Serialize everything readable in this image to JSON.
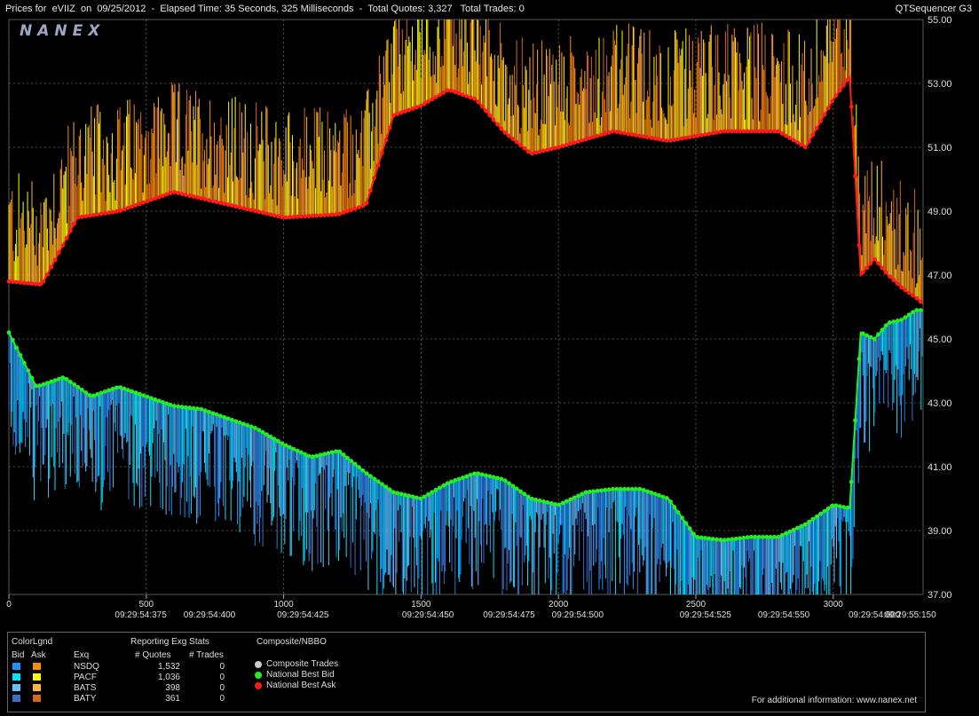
{
  "header": {
    "title": "Prices for  eVIIZ  on  09/25/2012  -  Elapsed Time: 35 Seconds, 325 Milliseconds  -  Total Quotes: 3,327   Total Trades: 0",
    "app": "QTSequencer G3",
    "logo": "NANEX"
  },
  "chart_data": {
    "type": "line",
    "y_ticks": [
      "55.00",
      "53.00",
      "51.00",
      "49.00",
      "47.00",
      "45.00",
      "43.00",
      "41.00",
      "39.00",
      "37.00"
    ],
    "ylim": [
      37,
      55
    ],
    "x_ticks": [
      "0",
      "500",
      "1000",
      "1500",
      "2000",
      "2500",
      "3000"
    ],
    "xlim": [
      0,
      3327
    ],
    "time_labels": [
      {
        "x": 480,
        "label": "09:29:54:375"
      },
      {
        "x": 730,
        "label": "09:29:54:400"
      },
      {
        "x": 1070,
        "label": "09:29:54:425"
      },
      {
        "x": 1525,
        "label": "09:29:54:450"
      },
      {
        "x": 1820,
        "label": "09:29:54:475"
      },
      {
        "x": 2070,
        "label": "09:29:54:500"
      },
      {
        "x": 2535,
        "label": "09:29:54:525"
      },
      {
        "x": 2820,
        "label": "09:29:54:550"
      },
      {
        "x": 3150,
        "label": "09:29:54:600"
      },
      {
        "x": 3280,
        "label": "09:29:55:150"
      }
    ],
    "series": [
      {
        "name": "National Best Ask",
        "color": "#ff1a1a",
        "x": [
          0,
          120,
          250,
          400,
          600,
          800,
          1000,
          1200,
          1300,
          1400,
          1500,
          1600,
          1700,
          1800,
          1900,
          2000,
          2200,
          2400,
          2600,
          2800,
          2900,
          3000,
          3060,
          3100,
          3150,
          3200,
          3250,
          3300,
          3327
        ],
        "values": [
          46.8,
          46.7,
          48.8,
          49.0,
          49.6,
          49.2,
          48.8,
          48.9,
          49.2,
          52.0,
          52.3,
          52.8,
          52.5,
          51.5,
          50.8,
          51.0,
          51.5,
          51.2,
          51.5,
          51.5,
          51.0,
          52.5,
          53.2,
          47.0,
          47.5,
          47.0,
          46.6,
          46.3,
          46.1
        ]
      },
      {
        "name": "National Best Bid",
        "color": "#22ee22",
        "x": [
          0,
          100,
          200,
          300,
          400,
          500,
          600,
          700,
          800,
          900,
          1000,
          1100,
          1200,
          1300,
          1400,
          1500,
          1600,
          1700,
          1800,
          1900,
          2000,
          2100,
          2200,
          2300,
          2400,
          2500,
          2600,
          2700,
          2800,
          2900,
          3000,
          3060,
          3100,
          3150,
          3200,
          3250,
          3300,
          3327
        ],
        "values": [
          45.2,
          43.5,
          43.8,
          43.2,
          43.5,
          43.2,
          42.9,
          42.8,
          42.5,
          42.2,
          41.7,
          41.3,
          41.5,
          40.8,
          40.2,
          40.0,
          40.5,
          40.8,
          40.6,
          40.0,
          39.8,
          40.2,
          40.3,
          40.3,
          40.0,
          38.8,
          38.7,
          38.8,
          38.8,
          39.2,
          39.8,
          39.7,
          45.2,
          45.0,
          45.5,
          45.6,
          45.9,
          45.9
        ]
      }
    ]
  },
  "legend": {
    "color_legend_title": "ColorLgnd",
    "bid_col": "Bid",
    "ask_col": "Ask",
    "exq_col": "Exq",
    "stats_title": "Reporting Exg Stats",
    "quotes_col": "# Quotes",
    "trades_col": "# Trades",
    "composite_title": "Composite/NBBO",
    "rows": [
      {
        "exch": "NSDQ",
        "quotes": "1,532",
        "trades": "0",
        "bid_color": "#1e90ff",
        "ask_color": "#ff8c00"
      },
      {
        "exch": "PACF",
        "quotes": "1,036",
        "trades": "0",
        "bid_color": "#00e5ff",
        "ask_color": "#ffff00"
      },
      {
        "exch": "BATS",
        "quotes": "398",
        "trades": "0",
        "bid_color": "#66c2ff",
        "ask_color": "#ffb347"
      },
      {
        "exch": "BATY",
        "quotes": "361",
        "trades": "0",
        "bid_color": "#3a6fc4",
        "ask_color": "#d2691e"
      }
    ],
    "composite": [
      {
        "label": "Composite Trades",
        "color": "#cccccc"
      },
      {
        "label": "National Best Bid",
        "color": "#22ee22"
      },
      {
        "label": "National Best Ask",
        "color": "#ff1a1a"
      }
    ],
    "footer": "For additional information: www.nanex.net"
  }
}
